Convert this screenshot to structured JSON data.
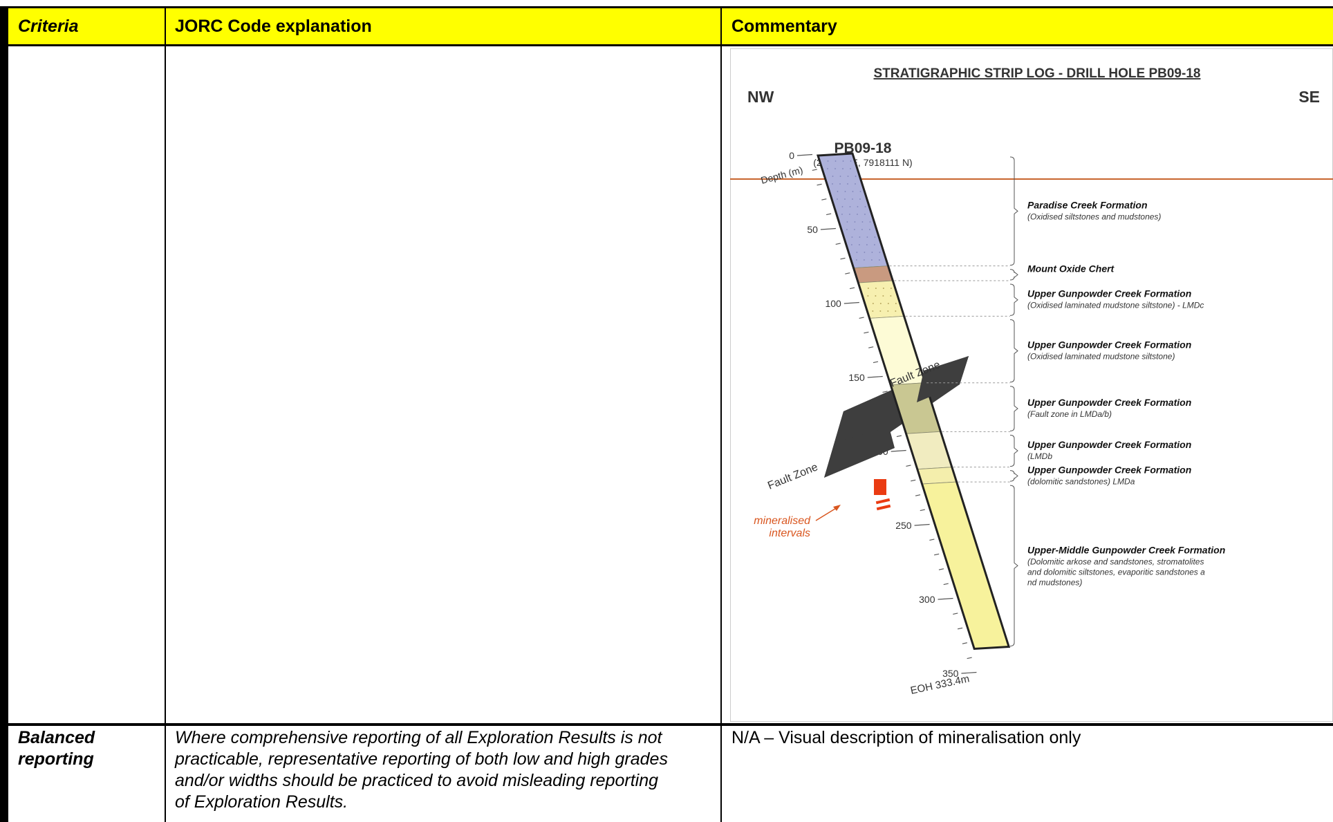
{
  "table": {
    "headers": {
      "criteria": "Criteria",
      "explanation": "JORC Code explanation",
      "commentary": "Commentary"
    },
    "rows": [
      {
        "criteria_line1": "Balanced",
        "criteria_line2": "reporting",
        "explanation_lines": [
          "Where comprehensive reporting of all Exploration Results is not",
          "practicable, representative reporting of both low and high grades",
          "and/or widths should be practiced to avoid misleading reporting",
          "of Exploration Results."
        ],
        "commentary": "N/A – Visual description of mineralisation only"
      }
    ]
  },
  "strip_log": {
    "title": "STRATIGRAPHIC STRIP LOG - DRILL HOLE PB09-18",
    "left_direction": "NW",
    "right_direction": "SE",
    "hole_id": "PB09-18",
    "hole_coords": "(272484 E, 7918111 N)",
    "depth_label": "Depth (m)",
    "depth_ticks": [
      "0",
      "50",
      "100",
      "150",
      "200",
      "250",
      "300",
      "350"
    ],
    "eoh_label": "EOH 333.4m",
    "fault_zone_label": "Fault Zone",
    "mineralised_line1": "mineralised",
    "mineralised_line2": "intervals",
    "units": [
      {
        "name": "Paradise Creek Formation",
        "desc": "(Oxidised siltstones and mudstones)",
        "top_m": 0,
        "base_m": 76,
        "color": "#aeb2db"
      },
      {
        "name": "Mount Oxide Chert",
        "desc": "",
        "top_m": 76,
        "base_m": 86,
        "color": "#c99a80"
      },
      {
        "name": "Upper Gunpowder Creek Formation",
        "desc": "(Oxidised laminated mudstone siltstone) - LMDc",
        "top_m": 86,
        "base_m": 110,
        "color": "#f7f0b0"
      },
      {
        "name": "Upper Gunpowder Creek Formation",
        "desc": "(Oxidised laminated mudstone siltstone)",
        "top_m": 110,
        "base_m": 155,
        "color": "#fdfbd6"
      },
      {
        "name": "Upper Gunpowder Creek Formation",
        "desc": "(Fault zone in LMDa/b)",
        "top_m": 155,
        "base_m": 188,
        "color": "#c9c792"
      },
      {
        "name": "Upper Gunpowder Creek Formation",
        "desc": "(LMDb",
        "top_m": 188,
        "base_m": 212,
        "color": "#f1ecc0"
      },
      {
        "name": "Upper Gunpowder Creek Formation",
        "desc": "(dolomitic sandstones) LMDa",
        "top_m": 212,
        "base_m": 222,
        "color": "#f4eeac"
      },
      {
        "name": "Upper-Middle Gunpowder Creek Formation",
        "desc": "(Dolomitic arkose and sandstones, stromatolites|and dolomitic siltstones, evaporitic sandstones a|nd mudstones)",
        "top_m": 222,
        "base_m": 333.4,
        "color": "#f7f29c"
      }
    ]
  }
}
